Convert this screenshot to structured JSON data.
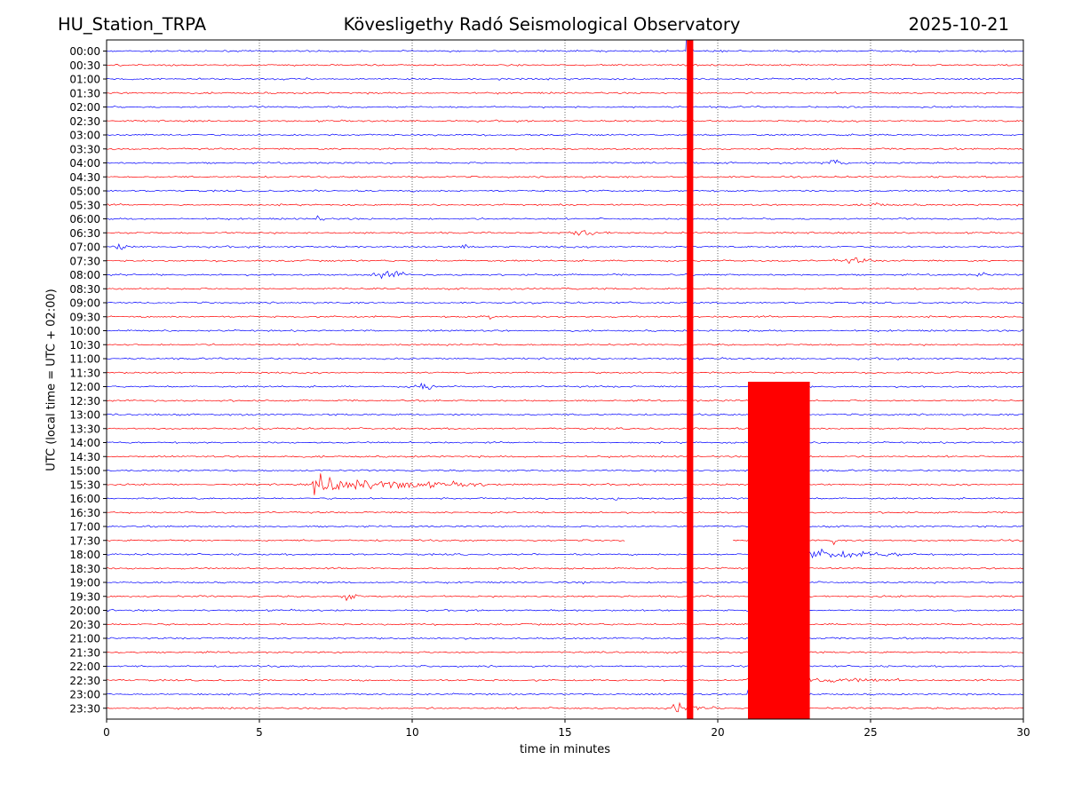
{
  "header": {
    "station": "HU_Station_TRPA",
    "observatory": "Kövesligethy Radó Seismological Observatory",
    "date": "2025-10-21"
  },
  "chart_data": {
    "type": "line",
    "subtype": "helicorder",
    "xlabel": "time in minutes",
    "ylabel": "UTC (local time = UTC + 02:00)",
    "xlim": [
      0,
      30
    ],
    "xticks": [
      0,
      5,
      10,
      15,
      20,
      25,
      30
    ],
    "grid": "vertical dotted lines at x ticks",
    "trace_colors": [
      "#0000ff",
      "#ff0000"
    ],
    "rows": [
      "00:00",
      "00:30",
      "01:00",
      "01:30",
      "02:00",
      "02:30",
      "03:00",
      "03:30",
      "04:00",
      "04:30",
      "05:00",
      "05:30",
      "06:00",
      "06:30",
      "07:00",
      "07:30",
      "08:00",
      "08:30",
      "09:00",
      "09:30",
      "10:00",
      "10:30",
      "11:00",
      "11:30",
      "12:00",
      "12:30",
      "13:00",
      "13:30",
      "14:00",
      "14:30",
      "15:00",
      "15:30",
      "16:00",
      "16:30",
      "17:00",
      "17:30",
      "18:00",
      "18:30",
      "19:00",
      "19:30",
      "20:00",
      "20:30",
      "21:00",
      "21:30",
      "22:00",
      "22:30",
      "23:00",
      "23:30"
    ],
    "events": [
      {
        "row": "00:00",
        "start_min": 19.0,
        "end_min": 19.2,
        "amp": 30,
        "note": "saturated vertical band through all rows"
      },
      {
        "row": "04:00",
        "start_min": 23.4,
        "end_min": 24.3,
        "amp": 0.6
      },
      {
        "row": "05:30",
        "start_min": 24.8,
        "end_min": 25.6,
        "amp": 0.6
      },
      {
        "row": "06:00",
        "start_min": 6.8,
        "end_min": 7.2,
        "amp": 1.0
      },
      {
        "row": "06:30",
        "start_min": 14.8,
        "end_min": 16.5,
        "amp": 0.5
      },
      {
        "row": "07:00",
        "start_min": 0.2,
        "end_min": 0.8,
        "amp": 0.8
      },
      {
        "row": "07:00",
        "start_min": 11.4,
        "end_min": 12.2,
        "amp": 0.6
      },
      {
        "row": "07:30",
        "start_min": 23.8,
        "end_min": 25.2,
        "amp": 0.6
      },
      {
        "row": "08:00",
        "start_min": 8.6,
        "end_min": 10.0,
        "amp": 1.0
      },
      {
        "row": "08:00",
        "start_min": 28.4,
        "end_min": 28.9,
        "amp": 0.6
      },
      {
        "row": "09:30",
        "start_min": 12.2,
        "end_min": 13.0,
        "amp": 0.6
      },
      {
        "row": "12:00",
        "start_min": 9.8,
        "end_min": 11.0,
        "amp": 0.8
      },
      {
        "row": "15:30",
        "start_min": 6.7,
        "end_min": 12.5,
        "amp": 2.2,
        "decay": true
      },
      {
        "row": "16:00",
        "start_min": 16.4,
        "end_min": 17.0,
        "amp": 0.5
      },
      {
        "row": "17:30",
        "start_min": 23.7,
        "end_min": 23.9,
        "amp": 1.0
      },
      {
        "row": "18:00",
        "start_min": 22.0,
        "end_min": 26.5,
        "amp": 1.8,
        "decay": true
      },
      {
        "row": "19:00",
        "start_min": 15.5,
        "end_min": 15.7,
        "amp": 0.8
      },
      {
        "row": "19:30",
        "start_min": 7.6,
        "end_min": 8.3,
        "amp": 0.8
      },
      {
        "row": "22:30",
        "start_min": 20.9,
        "end_min": 26.0,
        "amp": 1.2,
        "decay": true
      },
      {
        "row": "23:00",
        "start_min": 21.0,
        "end_min": 23.0,
        "amp": 26,
        "note": "large earthquake, saturated across 14:00-23:30"
      },
      {
        "row": "23:30",
        "start_min": 18.5,
        "end_min": 20.0,
        "amp": 1.6,
        "decay": true
      }
    ],
    "gaps": [
      {
        "row": "17:30",
        "start_min": 17.0,
        "end_min": 20.5
      }
    ]
  }
}
